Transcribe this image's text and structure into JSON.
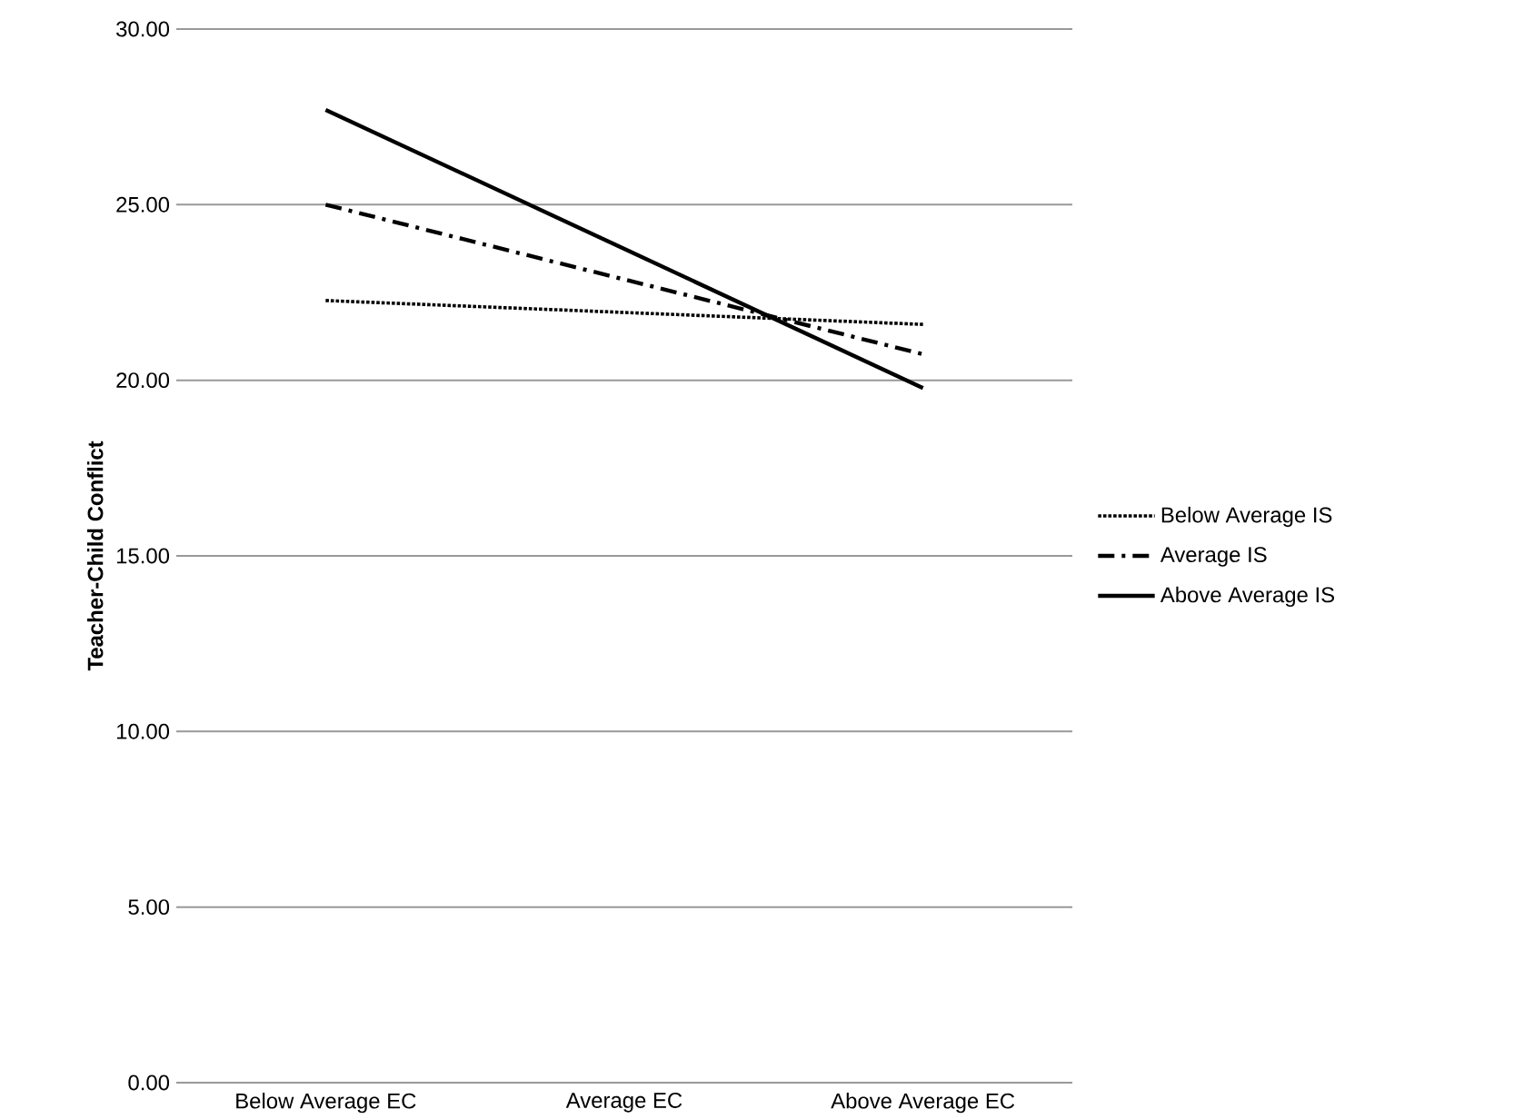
{
  "chart_data": {
    "type": "line",
    "ylabel": "Teacher-Child Conflict",
    "categories": [
      "Below Average EC",
      "Average EC",
      "Above Average EC"
    ],
    "series": [
      {
        "name": "Below Average IS",
        "color": "#000000",
        "line_style": "dotted",
        "values": [
          22.27,
          21.93,
          21.59
        ]
      },
      {
        "name": "Average IS",
        "color": "#000000",
        "line_style": "dashdot",
        "values": [
          25.0,
          22.87,
          20.74
        ]
      },
      {
        "name": "Above Average IS",
        "color": "#000000",
        "line_style": "solid",
        "values": [
          27.7,
          23.74,
          19.78
        ]
      }
    ],
    "ylim": [
      0,
      30
    ],
    "yticks": [
      {
        "value": 0,
        "label": "0.00"
      },
      {
        "value": 5,
        "label": "5.00"
      },
      {
        "value": 10,
        "label": "10.00"
      },
      {
        "value": 15,
        "label": "15.00"
      },
      {
        "value": 20,
        "label": "20.00"
      },
      {
        "value": 25,
        "label": "25.00"
      },
      {
        "value": 30,
        "label": "30.00"
      }
    ],
    "grid": "y",
    "legend": "right"
  }
}
